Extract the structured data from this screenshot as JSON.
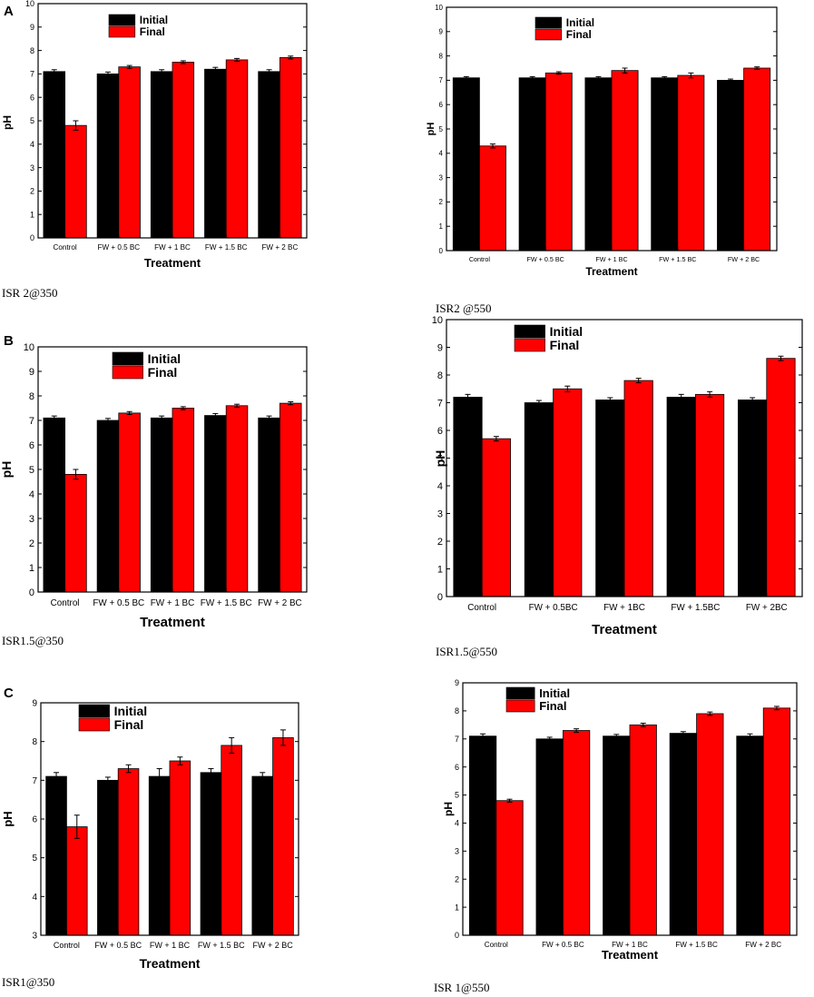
{
  "panel_letters": [
    "A",
    "B",
    "C"
  ],
  "colors": {
    "initial": "#000000",
    "final": "#ff0000"
  },
  "chart_data": [
    {
      "type": "bar",
      "panel": "A",
      "caption": "ISR 2@350",
      "categories": [
        "Control",
        "FW + 0.5 BC",
        "FW + 1 BC",
        "FW + 1.5 BC",
        "FW + 2 BC"
      ],
      "series": [
        {
          "name": "Initial",
          "values": [
            7.1,
            7.0,
            7.1,
            7.2,
            7.1
          ],
          "errors": [
            0.08,
            0.08,
            0.08,
            0.08,
            0.08
          ]
        },
        {
          "name": "Final",
          "values": [
            4.8,
            7.3,
            7.5,
            7.6,
            7.7
          ],
          "errors": [
            0.2,
            0.06,
            0.06,
            0.06,
            0.06
          ]
        }
      ],
      "xlabel": "Treatment",
      "ylabel": "pH",
      "ylim": [
        0,
        10
      ],
      "yticks": [
        "0",
        "1",
        "2",
        "3",
        "4",
        "5",
        "6",
        "7",
        "8",
        "9",
        "10"
      ],
      "legend": "top-left"
    },
    {
      "type": "bar",
      "panel": "",
      "caption": "ISR2 @550",
      "categories": [
        "Control",
        "FW + 0.5 BC",
        "FW + 1 BC",
        "FW + 1.5 BC",
        "FW + 2 BC"
      ],
      "series": [
        {
          "name": "Initial",
          "values": [
            7.1,
            7.1,
            7.1,
            7.1,
            7.0
          ],
          "errors": [
            0.05,
            0.05,
            0.05,
            0.05,
            0.05
          ]
        },
        {
          "name": "Final",
          "values": [
            4.3,
            7.3,
            7.4,
            7.2,
            7.5
          ],
          "errors": [
            0.08,
            0.05,
            0.1,
            0.1,
            0.05
          ]
        }
      ],
      "xlabel": "Treatment",
      "ylabel": "pH",
      "ylim": [
        0,
        10
      ],
      "yticks": [
        "0",
        "1",
        "2",
        "3",
        "4",
        "5",
        "6",
        "7",
        "8",
        "9",
        "10"
      ],
      "legend": "top-left"
    },
    {
      "type": "bar",
      "panel": "B",
      "caption": "ISR1.5@350",
      "categories": [
        "Control",
        "FW + 0.5 BC",
        "FW + 1 BC",
        "FW + 1.5 BC",
        "FW + 2 BC"
      ],
      "series": [
        {
          "name": "Initial",
          "values": [
            7.1,
            7.0,
            7.1,
            7.2,
            7.1
          ],
          "errors": [
            0.08,
            0.08,
            0.08,
            0.08,
            0.08
          ]
        },
        {
          "name": "Final",
          "values": [
            4.8,
            7.3,
            7.5,
            7.6,
            7.7
          ],
          "errors": [
            0.2,
            0.06,
            0.06,
            0.06,
            0.06
          ]
        }
      ],
      "xlabel": "Treatment",
      "ylabel": "pH",
      "ylim": [
        0,
        10
      ],
      "yticks": [
        "0",
        "1",
        "2",
        "3",
        "4",
        "5",
        "6",
        "7",
        "8",
        "9",
        "10"
      ],
      "legend": "top-left"
    },
    {
      "type": "bar",
      "panel": "",
      "caption": "ISR1.5@550",
      "categories": [
        "Control",
        "FW + 0.5BC",
        "FW + 1BC",
        "FW + 1.5BC",
        "FW + 2BC"
      ],
      "series": [
        {
          "name": "Initial",
          "values": [
            7.2,
            7.0,
            7.1,
            7.2,
            7.1
          ],
          "errors": [
            0.1,
            0.08,
            0.08,
            0.1,
            0.08
          ]
        },
        {
          "name": "Final",
          "values": [
            5.7,
            7.5,
            7.8,
            7.3,
            8.6
          ],
          "errors": [
            0.08,
            0.1,
            0.08,
            0.1,
            0.08
          ]
        }
      ],
      "xlabel": "Treatment",
      "ylabel": "pH",
      "ylim": [
        0,
        10
      ],
      "yticks": [
        "0",
        "1",
        "2",
        "3",
        "4",
        "5",
        "6",
        "7",
        "8",
        "9",
        "10"
      ],
      "legend": "top-left"
    },
    {
      "type": "bar",
      "panel": "C",
      "caption": "ISR1@350",
      "categories": [
        "Control",
        "FW + 0.5 BC",
        "FW + 1 BC",
        "FW + 1.5 BC",
        "FW + 2 BC"
      ],
      "series": [
        {
          "name": "Initial",
          "values": [
            7.1,
            7.0,
            7.1,
            7.2,
            7.1
          ],
          "errors": [
            0.1,
            0.08,
            0.2,
            0.1,
            0.1
          ]
        },
        {
          "name": "Final",
          "values": [
            5.8,
            7.3,
            7.5,
            7.9,
            8.1
          ],
          "errors": [
            0.3,
            0.1,
            0.1,
            0.2,
            0.2
          ]
        }
      ],
      "xlabel": "Treatment",
      "ylabel": "pH",
      "ylim": [
        3,
        9
      ],
      "yticks": [
        "3",
        "4",
        "5",
        "6",
        "7",
        "8",
        "9"
      ],
      "legend": "top-left"
    },
    {
      "type": "bar",
      "panel": "",
      "caption": "ISR 1@550",
      "categories": [
        "Control",
        "FW + 0.5 BC",
        "FW + 1 BC",
        "FW + 1.5 BC",
        "FW + 2 BC"
      ],
      "series": [
        {
          "name": "Initial",
          "values": [
            7.1,
            7.0,
            7.1,
            7.2,
            7.1
          ],
          "errors": [
            0.08,
            0.06,
            0.06,
            0.06,
            0.08
          ]
        },
        {
          "name": "Final",
          "values": [
            4.8,
            7.3,
            7.5,
            7.9,
            8.1
          ],
          "errors": [
            0.05,
            0.06,
            0.06,
            0.06,
            0.06
          ]
        }
      ],
      "xlabel": "Treatment",
      "ylabel": "pH",
      "ylim": [
        0,
        9
      ],
      "yticks": [
        "0",
        "1",
        "2",
        "3",
        "4",
        "5",
        "6",
        "7",
        "8",
        "9"
      ],
      "legend": "top-left"
    }
  ]
}
